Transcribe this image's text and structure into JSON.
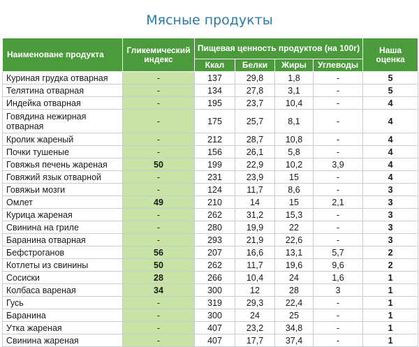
{
  "title": "Мясные продукты",
  "header": {
    "name": "Наименоване продукта",
    "gi": "Гликемический индекс",
    "nutrition": "Пищевая ценность продуктов (на 100г)",
    "score": "Наша оценка",
    "kcal": "Ккал",
    "protein": "Белки",
    "fat": "Жиры",
    "carbs": "Углеводы"
  },
  "rows": [
    {
      "name": "Куриная грудка отварная",
      "gi": "-",
      "kcal": "137",
      "protein": "29,8",
      "fat": "1,8",
      "carbs": "-",
      "score": "5"
    },
    {
      "name": "Телятина отварная",
      "gi": "-",
      "kcal": "134",
      "protein": "27,8",
      "fat": "3,1",
      "carbs": "-",
      "score": "5"
    },
    {
      "name": "Индейка отварная",
      "gi": "-",
      "kcal": "195",
      "protein": "23,7",
      "fat": "10,4",
      "carbs": "-",
      "score": "4"
    },
    {
      "name": "Говядина нежирная отварная",
      "gi": "-",
      "kcal": "175",
      "protein": "25,7",
      "fat": "8,1",
      "carbs": "-",
      "score": "4"
    },
    {
      "name": "Кролик жареный",
      "gi": "-",
      "kcal": "212",
      "protein": "28,7",
      "fat": "10,8",
      "carbs": "-",
      "score": "4"
    },
    {
      "name": "Почки тушеные",
      "gi": "-",
      "kcal": "156",
      "protein": "26,1",
      "fat": "5,8",
      "carbs": "-",
      "score": "4"
    },
    {
      "name": "Говяжья печень жареная",
      "gi": "50",
      "kcal": "199",
      "protein": "22,9",
      "fat": "10,2",
      "carbs": "3,9",
      "score": "4"
    },
    {
      "name": "Говяжий язык отварной",
      "gi": "-",
      "kcal": "231",
      "protein": "23,9",
      "fat": "15",
      "carbs": "-",
      "score": "4"
    },
    {
      "name": "Говяжьи мозги",
      "gi": "-",
      "kcal": "124",
      "protein": "11,7",
      "fat": "8,6",
      "carbs": "-",
      "score": "3"
    },
    {
      "name": "Омлет",
      "gi": "49",
      "kcal": "210",
      "protein": "14",
      "fat": "15",
      "carbs": "2,1",
      "score": "3"
    },
    {
      "name": "Курица жареная",
      "gi": "-",
      "kcal": "262",
      "protein": "31,2",
      "fat": "15,3",
      "carbs": "-",
      "score": "3"
    },
    {
      "name": "Свинина на гриле",
      "gi": "-",
      "kcal": "280",
      "protein": "19,9",
      "fat": "22",
      "carbs": "-",
      "score": "3"
    },
    {
      "name": "Баранина отварная",
      "gi": "-",
      "kcal": "293",
      "protein": "21,9",
      "fat": "22,6",
      "carbs": "-",
      "score": "3"
    },
    {
      "name": "Бефстроганов",
      "gi": "56",
      "kcal": "207",
      "protein": "16,6",
      "fat": "13,1",
      "carbs": "5,7",
      "score": "2"
    },
    {
      "name": "Котлеты из свинины",
      "gi": "50",
      "kcal": "262",
      "protein": "11,7",
      "fat": "19,6",
      "carbs": "9,6",
      "score": "2"
    },
    {
      "name": "Сосиски",
      "gi": "28",
      "kcal": "266",
      "protein": "10,4",
      "fat": "24",
      "carbs": "1,6",
      "score": "1"
    },
    {
      "name": "Колбаса вареная",
      "gi": "34",
      "kcal": "300",
      "protein": "12",
      "fat": "28",
      "carbs": "3",
      "score": "1"
    },
    {
      "name": "Гусь",
      "gi": "-",
      "kcal": "319",
      "protein": "29,3",
      "fat": "22,4",
      "carbs": "-",
      "score": "1"
    },
    {
      "name": "Баранина",
      "gi": "-",
      "kcal": "300",
      "protein": "24",
      "fat": "25",
      "carbs": "-",
      "score": "1"
    },
    {
      "name": "Утка жареная",
      "gi": "-",
      "kcal": "407",
      "protein": "23,2",
      "fat": "34,8",
      "carbs": "-",
      "score": "1"
    },
    {
      "name": "Свинина жареная",
      "gi": "-",
      "kcal": "407",
      "protein": "17,7",
      "fat": "37,4",
      "carbs": "-",
      "score": "1"
    }
  ]
}
